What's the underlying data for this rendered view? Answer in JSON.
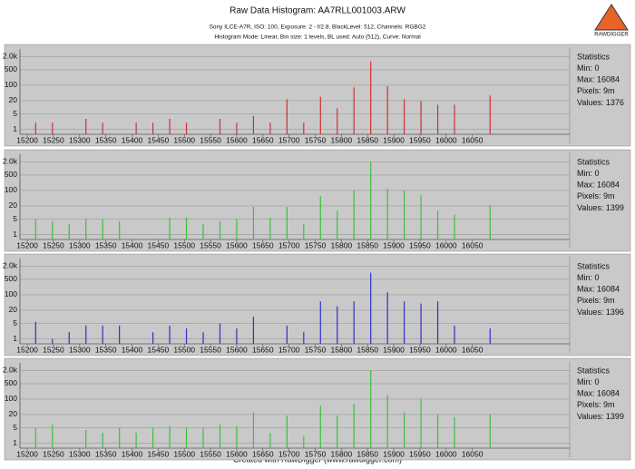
{
  "header": {
    "title": "Raw Data Histogram: AA7RLL001003.ARW",
    "lines": [
      "Sony ILCE-A7R, ISO: 100, Exposure: 2 - f/2.8, BlackLevel: 512, Channels: RGBG2",
      "Histogram Mode: Linear, Bin size: 1 levels, BL used: Auto (512), Curve: Normal"
    ],
    "logo": "RAWDIGGER"
  },
  "footer": "Created with RawDigger (www.rawdigger.com)",
  "chart_data": [
    {
      "type": "bar",
      "color": "#d03030",
      "log_y": true,
      "grid": true,
      "x": [
        15216,
        15248,
        15312,
        15344,
        15408,
        15440,
        15472,
        15504,
        15568,
        15600,
        15632,
        15664,
        15696,
        15728,
        15760,
        15792,
        15824,
        15856,
        15888,
        15920,
        15952,
        15984,
        16016,
        16084
      ],
      "values": [
        2,
        2,
        3,
        2,
        2,
        2,
        3,
        2,
        3,
        2,
        4,
        2,
        23,
        2,
        30,
        9,
        80,
        1160,
        90,
        23,
        19,
        13,
        13,
        34
      ],
      "xlim": [
        15186,
        16236
      ],
      "ylim": [
        0.6,
        3000
      ],
      "xticks": [
        15200,
        15250,
        15300,
        15350,
        15400,
        15450,
        15500,
        15550,
        15600,
        15650,
        15700,
        15750,
        15800,
        15850,
        15900,
        15950,
        16000,
        16050
      ],
      "yticks": [
        {
          "value": 2000,
          "label": "2.0k"
        },
        500,
        100,
        20,
        5,
        1
      ],
      "annotations": [
        "Statistics",
        "Min: 0",
        "Max: 16084",
        "Pixels: 9m",
        "Values: 1376"
      ]
    },
    {
      "type": "bar",
      "color": "#3cc03c",
      "log_y": true,
      "grid": true,
      "x": [
        15216,
        15248,
        15280,
        15312,
        15344,
        15376,
        15472,
        15504,
        15536,
        15568,
        15600,
        15632,
        15664,
        15696,
        15728,
        15760,
        15792,
        15824,
        15856,
        15888,
        15920,
        15952,
        15984,
        16016,
        16084
      ],
      "values": [
        5,
        4,
        3,
        5,
        5,
        4,
        6,
        6,
        3,
        4,
        5,
        18,
        6,
        18,
        3,
        55,
        12,
        100,
        2000,
        120,
        100,
        60,
        12,
        8,
        22
      ],
      "xlim": [
        15186,
        16236
      ],
      "ylim": [
        0.6,
        3000
      ],
      "xticks": [
        15200,
        15250,
        15300,
        15350,
        15400,
        15450,
        15500,
        15550,
        15600,
        15650,
        15700,
        15750,
        15800,
        15850,
        15900,
        15950,
        16000,
        16050
      ],
      "yticks": [
        {
          "value": 2000,
          "label": "2.0k"
        },
        500,
        100,
        20,
        5,
        1
      ],
      "annotations": [
        "Statistics",
        "Min: 0",
        "Max: 16084",
        "Pixels: 9m",
        "Values: 1399"
      ]
    },
    {
      "type": "bar",
      "color": "#3030c8",
      "log_y": true,
      "grid": true,
      "x": [
        15216,
        15248,
        15280,
        15312,
        15344,
        15376,
        15440,
        15472,
        15504,
        15536,
        15568,
        15600,
        15632,
        15696,
        15728,
        15760,
        15792,
        15824,
        15856,
        15888,
        15920,
        15952,
        15984,
        16016,
        16084
      ],
      "values": [
        6,
        1,
        2,
        4,
        4,
        4,
        2,
        4,
        3,
        2,
        5,
        3,
        10,
        4,
        2,
        50,
        30,
        50,
        1000,
        130,
        50,
        40,
        50,
        4,
        3
      ],
      "xlim": [
        15186,
        16236
      ],
      "ylim": [
        0.6,
        3000
      ],
      "xticks": [
        15200,
        15250,
        15300,
        15350,
        15400,
        15450,
        15500,
        15550,
        15600,
        15650,
        15700,
        15750,
        15800,
        15850,
        15900,
        15950,
        16000,
        16050
      ],
      "yticks": [
        {
          "value": 2000,
          "label": "2.0k"
        },
        500,
        100,
        20,
        5,
        1
      ],
      "annotations": [
        "Statistics",
        "Min: 0",
        "Max: 16084",
        "Pixels: 9m",
        "Values: 1396"
      ]
    },
    {
      "type": "bar",
      "color": "#3cc03c",
      "log_y": true,
      "grid": true,
      "x": [
        15216,
        15248,
        15312,
        15344,
        15376,
        15408,
        15440,
        15472,
        15504,
        15536,
        15568,
        15600,
        15632,
        15664,
        15696,
        15728,
        15760,
        15792,
        15824,
        15856,
        15888,
        15920,
        15952,
        15984,
        16016,
        16084
      ],
      "values": [
        5,
        7,
        4,
        3,
        5,
        3,
        5,
        6,
        5,
        5,
        7,
        6,
        25,
        3,
        18,
        2,
        50,
        18,
        60,
        2000,
        150,
        25,
        100,
        20,
        15,
        20
      ],
      "xlim": [
        15186,
        16236
      ],
      "ylim": [
        0.6,
        3000
      ],
      "xticks": [
        15200,
        15250,
        15300,
        15350,
        15400,
        15450,
        15500,
        15550,
        15600,
        15650,
        15700,
        15750,
        15800,
        15850,
        15900,
        15950,
        16000,
        16050
      ],
      "yticks": [
        {
          "value": 2000,
          "label": "2.0k"
        },
        500,
        100,
        20,
        5,
        1
      ],
      "annotations": [
        "Statistics",
        "Min: 0",
        "Max: 16084",
        "Pixels: 9m",
        "Values: 1399"
      ]
    }
  ]
}
